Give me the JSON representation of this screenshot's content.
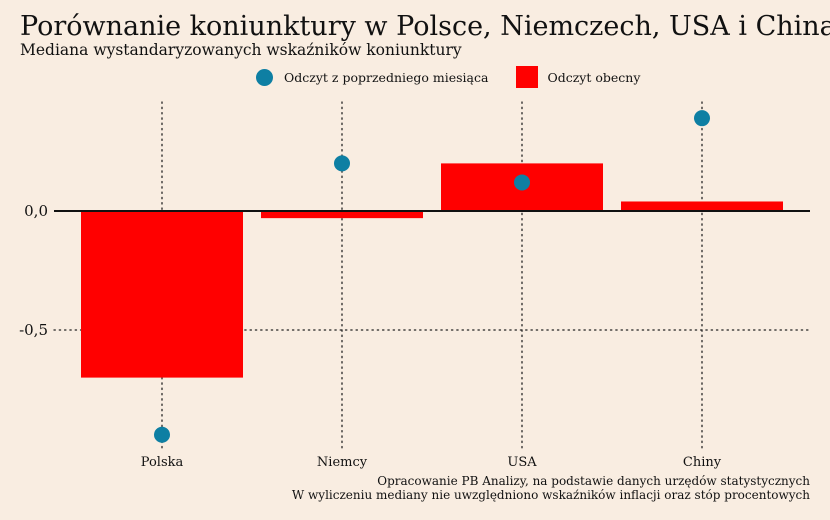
{
  "chart_data": {
    "type": "bar",
    "title": "Porównanie koniunktury w Polsce, Niemczech, USA i Chinach",
    "subtitle": "Mediana wystandaryzowanych wskaźników koniunktury",
    "categories": [
      "Polska",
      "Niemcy",
      "USA",
      "Chiny"
    ],
    "series": [
      {
        "name": "Odczyt z poprzedniego miesiąca",
        "kind": "point",
        "color": "#0e7fa3",
        "values": [
          -0.94,
          0.2,
          0.12,
          0.39
        ]
      },
      {
        "name": "Odczyt obecny",
        "kind": "bar",
        "color": "#ff0000",
        "values": [
          -0.7,
          -0.03,
          0.2,
          0.04
        ]
      }
    ],
    "yticks": [
      {
        "value": 0,
        "label": "0,0"
      },
      {
        "value": -0.5,
        "label": "-0,5"
      }
    ],
    "ylim": [
      -1.0,
      0.45
    ],
    "grid": true,
    "legend_position": "top",
    "notes": [
      "Opracowanie PB Analizy, na podstawie danych urzędów statystycznych",
      "W wyliczeniu mediany nie uwzględniono wskaźników inflacji oraz stóp procentowych"
    ]
  }
}
